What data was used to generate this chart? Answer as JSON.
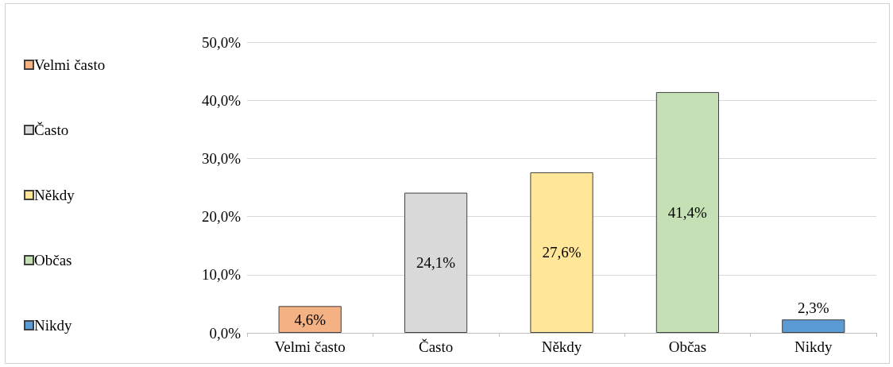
{
  "chart_data": {
    "type": "bar",
    "categories": [
      "Velmi často",
      "Často",
      "Někdy",
      "Občas",
      "Nikdy"
    ],
    "series": [
      {
        "name": "Velmi často",
        "color": "#f4b183",
        "values": [
          4.6,
          null,
          null,
          null,
          null
        ],
        "value_labels": [
          "4,6%",
          null,
          null,
          null,
          null
        ]
      },
      {
        "name": "Často",
        "color": "#d9d9d9",
        "values": [
          null,
          24.1,
          null,
          null,
          null
        ],
        "value_labels": [
          null,
          "24,1%",
          null,
          null,
          null
        ]
      },
      {
        "name": "Někdy",
        "color": "#ffe699",
        "values": [
          null,
          null,
          27.6,
          null,
          null
        ],
        "value_labels": [
          null,
          null,
          "27,6%",
          null,
          null
        ]
      },
      {
        "name": "Občas",
        "color": "#c5e0b4",
        "values": [
          null,
          null,
          null,
          41.4,
          null
        ],
        "value_labels": [
          null,
          null,
          null,
          "41,4%",
          null
        ]
      },
      {
        "name": "Nikdy",
        "color": "#5b9bd5",
        "values": [
          null,
          null,
          null,
          null,
          2.3
        ],
        "value_labels": [
          null,
          null,
          null,
          null,
          "2,3%"
        ]
      }
    ],
    "ylim": [
      0,
      50
    ],
    "yticks": [
      {
        "value": 0,
        "label": "0,0%"
      },
      {
        "value": 10,
        "label": "10,0%"
      },
      {
        "value": 20,
        "label": "20,0%"
      },
      {
        "value": 30,
        "label": "30,0%"
      },
      {
        "value": 40,
        "label": "40,0%"
      },
      {
        "value": 50,
        "label": "50,0%"
      }
    ],
    "grid": "y",
    "legend": "left"
  }
}
